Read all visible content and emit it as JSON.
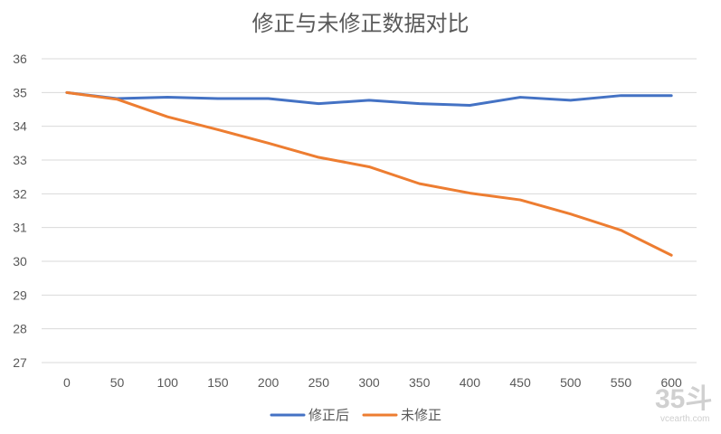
{
  "chart_data": {
    "type": "line",
    "title": "修正与未修正数据对比",
    "xlabel": "",
    "ylabel": "",
    "categories": [
      "0",
      "50",
      "100",
      "150",
      "200",
      "250",
      "300",
      "350",
      "400",
      "450",
      "500",
      "550",
      "600"
    ],
    "ylim": [
      27,
      36
    ],
    "yticks": [
      27,
      28,
      29,
      30,
      31,
      32,
      33,
      34,
      35,
      36
    ],
    "grid": true,
    "legend_position": "bottom",
    "series": [
      {
        "name": "修正后",
        "color": "#4472C4",
        "values": [
          35.0,
          34.82,
          34.86,
          34.82,
          34.82,
          34.67,
          34.77,
          34.67,
          34.62,
          34.86,
          34.77,
          34.91,
          34.91
        ]
      },
      {
        "name": "未修正",
        "color": "#ED7D31",
        "values": [
          35.0,
          34.8,
          34.28,
          33.9,
          33.5,
          33.08,
          32.8,
          32.3,
          32.02,
          31.82,
          31.4,
          30.92,
          30.18
        ]
      }
    ]
  },
  "watermark": {
    "number": "35斗",
    "url": "vcearth.com"
  }
}
